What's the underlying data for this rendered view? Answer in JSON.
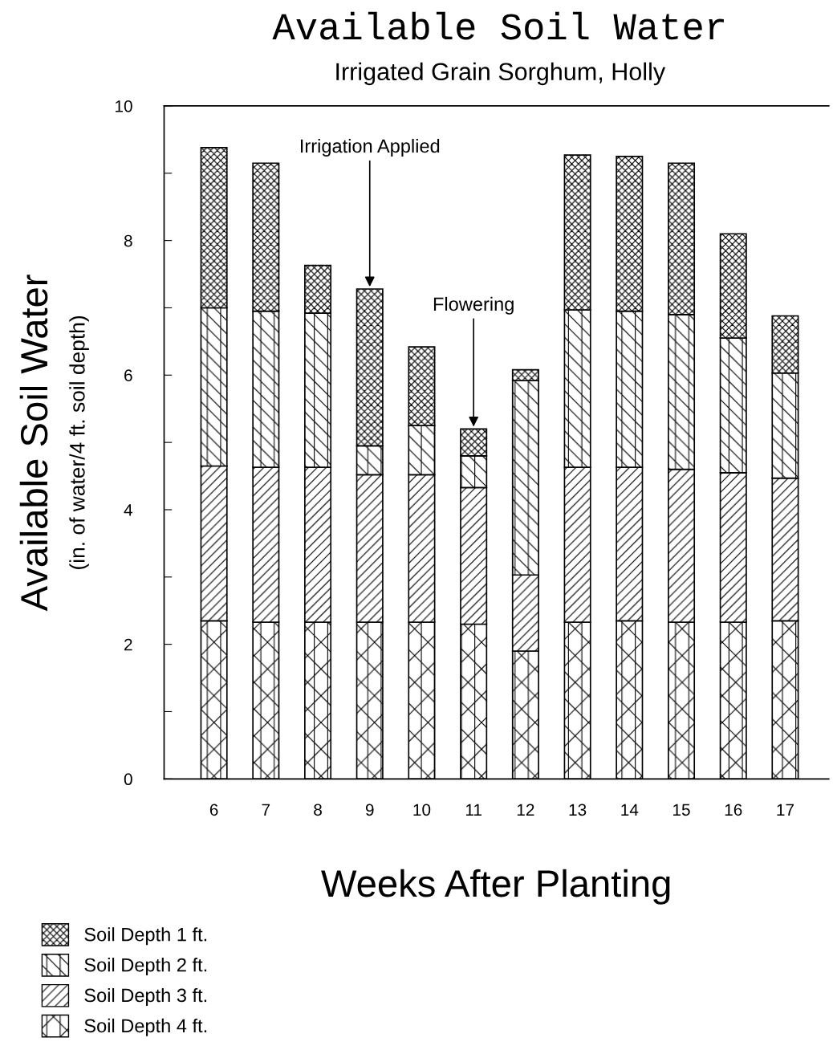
{
  "chart_data": {
    "type": "bar",
    "stacked": true,
    "title": "Available Soil Water",
    "subtitle": "Irrigated Grain Sorghum, Holly",
    "xlabel": "Weeks After Planting",
    "ylabel": "Available Soil Water\n(in. of water/4 ft. soil depth)",
    "categories": [
      "6",
      "7",
      "8",
      "9",
      "10",
      "11",
      "12",
      "13",
      "14",
      "15",
      "16",
      "17"
    ],
    "series": [
      {
        "name": "Soil Depth 4 ft.",
        "color": "#000000",
        "values": [
          2.35,
          2.33,
          2.33,
          2.33,
          2.33,
          2.3,
          1.9,
          2.33,
          2.35,
          2.33,
          2.33,
          2.35
        ]
      },
      {
        "name": "Soil Depth 3 ft.",
        "color": "#000000",
        "values": [
          2.3,
          2.3,
          2.3,
          2.19,
          2.19,
          2.03,
          1.13,
          2.3,
          2.28,
          2.27,
          2.22,
          2.12
        ]
      },
      {
        "name": "Soil Depth 2 ft.",
        "color": "#000000",
        "values": [
          2.35,
          2.32,
          2.29,
          0.43,
          0.73,
          0.47,
          2.89,
          2.34,
          2.32,
          2.3,
          2.0,
          1.56
        ]
      },
      {
        "name": "Soil Depth 1 ft.",
        "color": "#000000",
        "values": [
          2.38,
          2.2,
          0.71,
          2.33,
          1.17,
          0.4,
          0.16,
          2.3,
          2.3,
          2.25,
          1.55,
          0.85
        ]
      }
    ],
    "ylim": [
      0,
      10
    ],
    "yticks": [
      0,
      {
        "value": 1,
        "label": null
      },
      2,
      {
        "value": 3,
        "label": null
      },
      4,
      {
        "value": 5,
        "label": null
      },
      6,
      {
        "value": 7,
        "label": null
      },
      8,
      {
        "value": 9,
        "label": null
      },
      10
    ],
    "annotations": [
      {
        "text": "Irrigation Applied",
        "x": "9",
        "y": 7.28
      },
      {
        "text": "Flowering",
        "x": "11",
        "y": 5.2
      }
    ],
    "legend": "bottom",
    "grid": false
  }
}
